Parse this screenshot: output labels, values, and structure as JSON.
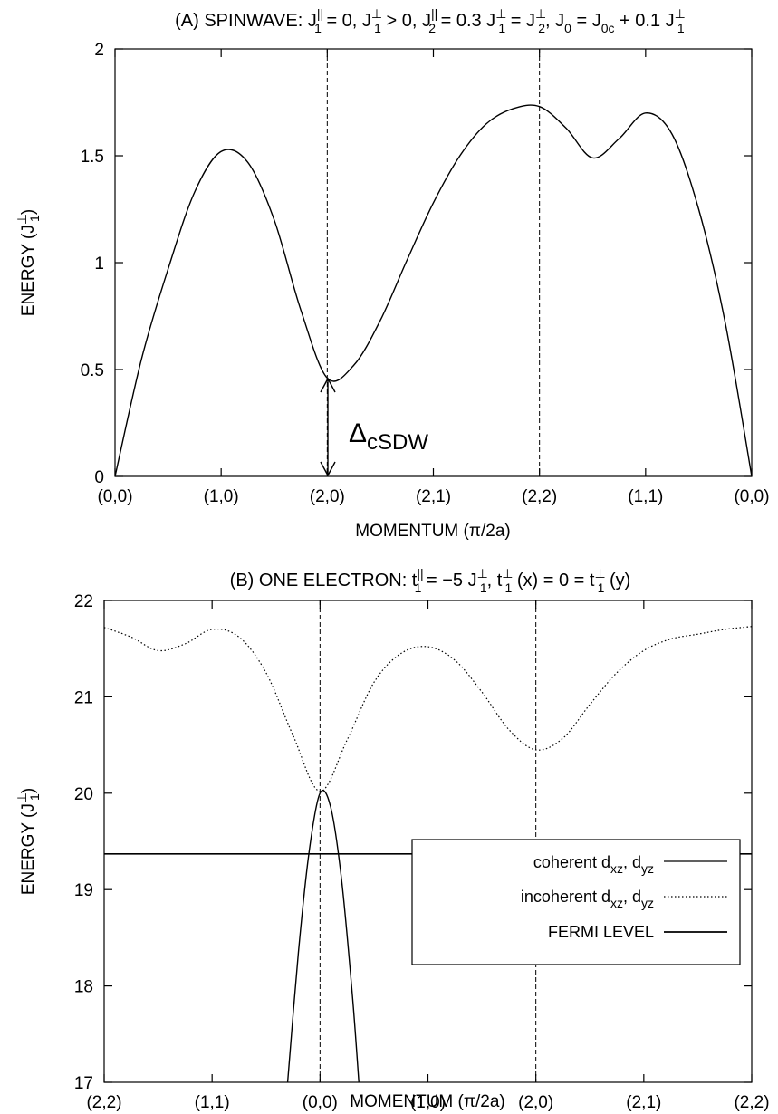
{
  "chart_data": [
    {
      "type": "line",
      "title": "(A) SPINWAVE: J₁^|| = 0, J₁^⊥ > 0, J₂^|| = 0.3 J₁^⊥ = J₂^⊥, J₀ = J₀c + 0.1 J₁^⊥",
      "xlabel": "MOMENTUM (π/2a)",
      "ylabel": "ENERGY (J₁^⊥)",
      "x_ticks": [
        "(0,0)",
        "(1,0)",
        "(2,0)",
        "(2,1)",
        "(2,2)",
        "(1,1)",
        "(0,0)"
      ],
      "y_ticks": [
        "0",
        "0.5",
        "1",
        "1.5",
        "2"
      ],
      "ylim": [
        0,
        2
      ],
      "xlim": [
        0,
        6
      ],
      "vlines_at": [
        2,
        4
      ],
      "annotation": "Δ_cSDW",
      "series": [
        {
          "style": "solid",
          "points": [
            [
              0,
              0
            ],
            [
              0.25,
              0.55
            ],
            [
              0.5,
              0.97
            ],
            [
              0.75,
              1.33
            ],
            [
              1,
              1.52
            ],
            [
              1.25,
              1.47
            ],
            [
              1.5,
              1.2
            ],
            [
              1.75,
              0.78
            ],
            [
              2,
              0.46
            ],
            [
              2.25,
              0.52
            ],
            [
              2.5,
              0.73
            ],
            [
              2.75,
              1.01
            ],
            [
              3,
              1.28
            ],
            [
              3.25,
              1.5
            ],
            [
              3.5,
              1.65
            ],
            [
              3.75,
              1.72
            ],
            [
              4,
              1.73
            ],
            [
              4.25,
              1.63
            ],
            [
              4.5,
              1.49
            ],
            [
              4.75,
              1.58
            ],
            [
              5,
              1.7
            ],
            [
              5.25,
              1.6
            ],
            [
              5.5,
              1.25
            ],
            [
              5.75,
              0.72
            ],
            [
              6,
              0
            ]
          ]
        }
      ]
    },
    {
      "type": "line",
      "title": "(B) ONE ELECTRON: t₁^|| = −5 J₁^⊥, t₁^⊥ (x) = 0 = t₁^⊥ (y)",
      "xlabel": "MOMENTUM (π/2a)",
      "ylabel": "ENERGY (J₁^⊥)",
      "x_ticks": [
        "(2,2)",
        "(1,1)",
        "(0,0)",
        "(1,0)",
        "(2,0)",
        "(2,1)",
        "(2,2)"
      ],
      "y_ticks": [
        "17",
        "18",
        "19",
        "20",
        "21",
        "22"
      ],
      "ylim": [
        17,
        22
      ],
      "xlim": [
        0,
        6
      ],
      "vlines_at": [
        2,
        4
      ],
      "series": [
        {
          "name": "coherent d_xz, d_yz",
          "style": "solid",
          "points": [
            [
              1.7,
              17
            ],
            [
              1.8,
              18.35
            ],
            [
              1.9,
              19.4
            ],
            [
              2,
              20
            ],
            [
              2.1,
              19.85
            ],
            [
              2.2,
              19.1
            ],
            [
              2.3,
              17.9
            ],
            [
              2.36,
              17
            ]
          ]
        },
        {
          "name": "incoherent d_xz, d_yz",
          "style": "dotted",
          "points": [
            [
              0,
              21.72
            ],
            [
              0.25,
              21.62
            ],
            [
              0.5,
              21.48
            ],
            [
              0.75,
              21.55
            ],
            [
              1,
              21.7
            ],
            [
              1.25,
              21.62
            ],
            [
              1.5,
              21.25
            ],
            [
              1.75,
              20.6
            ],
            [
              2,
              20.02
            ],
            [
              2.25,
              20.55
            ],
            [
              2.5,
              21.15
            ],
            [
              2.75,
              21.45
            ],
            [
              3,
              21.52
            ],
            [
              3.25,
              21.38
            ],
            [
              3.5,
              21.05
            ],
            [
              3.75,
              20.66
            ],
            [
              4,
              20.45
            ],
            [
              4.25,
              20.57
            ],
            [
              4.5,
              20.92
            ],
            [
              4.75,
              21.25
            ],
            [
              5,
              21.48
            ],
            [
              5.25,
              21.6
            ],
            [
              5.5,
              21.65
            ],
            [
              5.75,
              21.7
            ],
            [
              6,
              21.73
            ]
          ]
        },
        {
          "name": "FERMI LEVEL",
          "style": "solid",
          "points": [
            [
              0,
              19.37
            ],
            [
              6,
              19.37
            ]
          ]
        }
      ]
    }
  ]
}
